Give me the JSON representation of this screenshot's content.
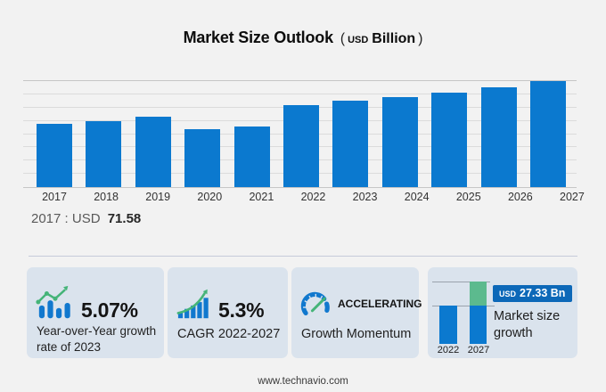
{
  "title": {
    "main": "Market Size Outlook",
    "open": "(",
    "currency": "USD",
    "unit": "Billion",
    "close": ")"
  },
  "chart_data": {
    "type": "bar",
    "title": "Market Size Outlook (USD Billion)",
    "unit": "USD Billion",
    "categories": [
      "2017",
      "2018",
      "2019",
      "2020",
      "2021",
      "2022",
      "2023",
      "2024",
      "2025",
      "2026",
      "2027"
    ],
    "values": [
      71.58,
      74.5,
      79.6,
      65.5,
      68.5,
      92.8,
      97.5,
      101.5,
      107.2,
      112.6,
      120.1
    ],
    "ylim": [
      0,
      120
    ],
    "grid": true,
    "bar_color": "#0b79cf",
    "xlabel": "",
    "ylabel": ""
  },
  "callout": {
    "prefix": "2017 : USD",
    "value": "71.58"
  },
  "cards": [
    {
      "icon": "bar-chart-trend-icon",
      "headline": "5.07%",
      "description": "Year-over-Year growth rate of 2023"
    },
    {
      "icon": "growth-arrow-icon",
      "headline": "5.3%",
      "description": "CAGR 2022-2027"
    },
    {
      "icon": "speedometer-icon",
      "headline": "ACCELERATING",
      "description": "Growth Momentum"
    },
    {
      "icon": "mini-growth-chart",
      "label": "Market size growth",
      "mini_chart": {
        "years": [
          "2022",
          "2027"
        ],
        "badge": {
          "currency": "USD",
          "value": "27.33 Bn"
        }
      }
    }
  ],
  "footer": {
    "url": "www.technavio.com"
  },
  "colors": {
    "bar_blue": "#0b79cf",
    "badge_blue": "#0c68b8",
    "icon_green": "#45b478",
    "mini_chart_green": "#5cba8e",
    "card_background": "#dae3ed",
    "page_background": "#f2f2f2",
    "gridline": "#dbdbdb"
  }
}
